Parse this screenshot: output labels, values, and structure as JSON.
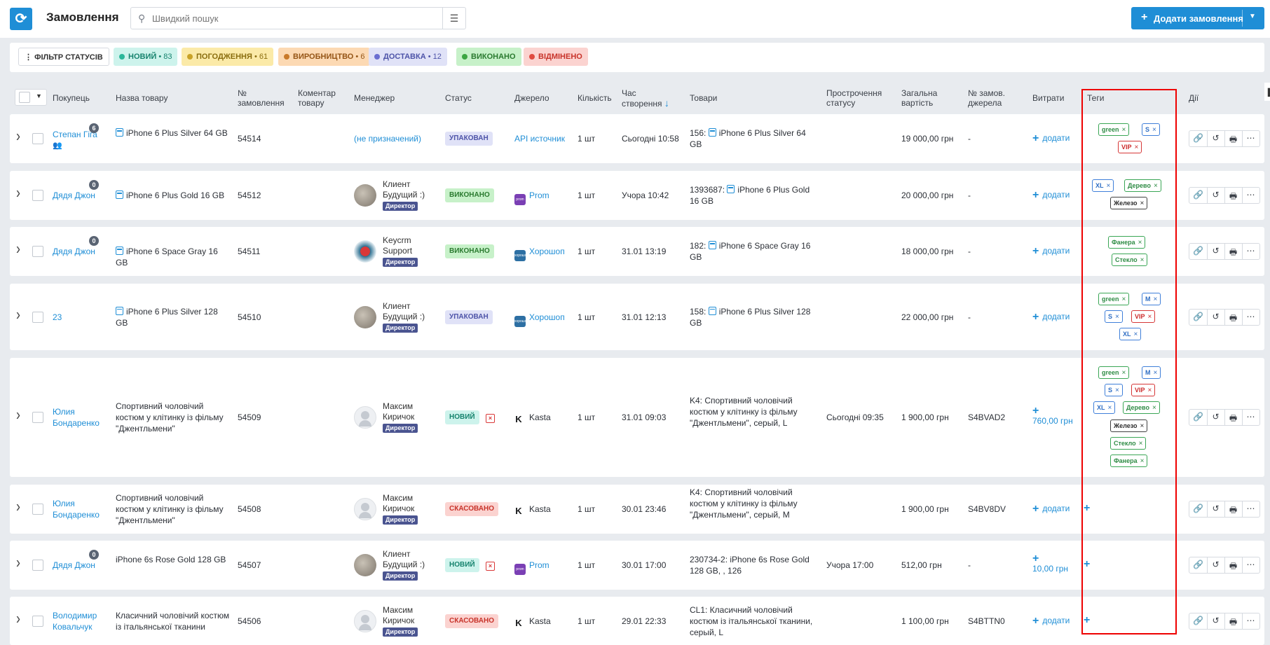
{
  "header": {
    "title": "Замовлення",
    "search_placeholder": "Швидкий пошук",
    "add_order_label": "Додати замовлення"
  },
  "status_filters": {
    "filter_label": "ФІЛЬТР СТАТУСІВ",
    "chips": [
      {
        "label": "НОВИЙ",
        "count": "• 83",
        "color": "#2bb79a"
      },
      {
        "label": "ПОГОДЖЕННЯ",
        "count": "• 61",
        "color": "#c9a227"
      },
      {
        "label": "ВИРОБНИЦТВО",
        "count": "• 6",
        "color": "#c97a2b"
      },
      {
        "label": "ДОСТАВКА",
        "count": "• 12",
        "color": "#6b6fd1"
      },
      {
        "label": "ВИКОНАНО",
        "count": "",
        "color": "#3ca642"
      },
      {
        "label": "ВІДМІНЕНО",
        "count": "",
        "color": "#e04b40"
      }
    ]
  },
  "columns": {
    "buyer": "Покупець",
    "product_name": "Назва товару",
    "order_no_1": "№",
    "order_no_2": "замовлення",
    "comment_1": "Коментар",
    "comment_2": "товару",
    "manager": "Менеджер",
    "status": "Статус",
    "source": "Джерело",
    "quantity": "Кількість",
    "created_1": "Час",
    "created_2": "створення",
    "goods": "Товари",
    "overdue_1": "Прострочення",
    "overdue_2": "статусу",
    "total_1": "Загальна",
    "total_2": "вартість",
    "src_no_1": "№ замов.",
    "src_no_2": "джерела",
    "expenses": "Витрати",
    "tags": "Теги",
    "actions": "Дії"
  },
  "add_label": "додати",
  "orders": [
    {
      "buyer": "Степан Гіга",
      "buyer_badge": "6",
      "product": "iPhone 6 Plus Silver 64 GB",
      "order_no": "54514",
      "manager_name": "(не призначений)",
      "manager_role": "",
      "status": "УПАКОВАН",
      "source": "API источник",
      "qty": "1 шт",
      "created": "Сьогодні 10:58",
      "goods_prefix": "156:",
      "goods": "iPhone 6 Plus Silver 64 GB",
      "overdue": "",
      "total": "19 000,00 грн",
      "src_no": "-",
      "expense": "",
      "tags": [
        [
          "green",
          "green"
        ],
        [
          "S",
          "blue"
        ],
        [
          "VIP",
          "red"
        ]
      ]
    },
    {
      "buyer": "Дядя Джон",
      "buyer_badge": "0",
      "product": "iPhone 6 Plus Gold 16 GB",
      "order_no": "54512",
      "manager_name": "Клиент Будущий :)",
      "manager_role": "Директор",
      "status": "ВИКОНАНО",
      "source": "Prom",
      "qty": "1 шт",
      "created": "Учора 10:42",
      "goods_prefix": "1393687:",
      "goods": "iPhone 6 Plus Gold 16 GB",
      "overdue": "",
      "total": "20 000,00 грн",
      "src_no": "-",
      "expense": "",
      "tags": [
        [
          "XL",
          "blue"
        ],
        [
          "Дерево",
          "green"
        ],
        [
          "Железо",
          "dark"
        ]
      ]
    },
    {
      "buyer": "Дядя Джон",
      "buyer_badge": "0",
      "product": "iPhone 6 Space Gray 16 GB",
      "order_no": "54511",
      "manager_name": "Keycrm Support",
      "manager_role": "Директор",
      "status": "ВИКОНАНО",
      "source": "Хорошоп",
      "qty": "1 шт",
      "created": "31.01 13:19",
      "goods_prefix": "182:",
      "goods": "iPhone 6 Space Gray 16 GB",
      "overdue": "",
      "total": "18 000,00 грн",
      "src_no": "-",
      "expense": "",
      "tags": [
        [
          "Фанера",
          "green"
        ],
        [
          "Стекло",
          "green"
        ]
      ]
    },
    {
      "buyer": "23",
      "buyer_badge": "",
      "product": "iPhone 6 Plus Silver 128 GB",
      "order_no": "54510",
      "manager_name": "Клиент Будущий :)",
      "manager_role": "Директор",
      "status": "УПАКОВАН",
      "source": "Хорошоп",
      "qty": "1 шт",
      "created": "31.01 12:13",
      "goods_prefix": "158:",
      "goods": "iPhone 6 Plus Silver 128 GB",
      "overdue": "",
      "total": "22 000,00 грн",
      "src_no": "-",
      "expense": "",
      "tags": [
        [
          "green",
          "green"
        ],
        [
          "M",
          "blue"
        ],
        [
          "S",
          "blue"
        ],
        [
          "VIP",
          "red"
        ],
        [
          "XL",
          "blue"
        ]
      ]
    },
    {
      "buyer": "Юлия Бондаренко",
      "buyer_badge": "",
      "product": "Спортивний чоловічий костюм у клітинку із фільму \"Джентльмени\"",
      "order_no": "54509",
      "manager_name": "Максим Киричок",
      "manager_role": "Директор",
      "status": "НОВИЙ",
      "source": "Kasta",
      "qty": "1 шт",
      "created": "31.01 09:03",
      "goods_prefix": "",
      "goods": "K4: Спортивний чоловічий костюм у клітинку із фільму \"Джентльмени\", серый, L",
      "overdue": "Сьогодні 09:35",
      "total": "1 900,00 грн",
      "src_no": "S4BVAD2",
      "expense": "760,00 грн",
      "tags": [
        [
          "green",
          "green"
        ],
        [
          "M",
          "blue"
        ],
        [
          "S",
          "blue"
        ],
        [
          "VIP",
          "red"
        ],
        [
          "XL",
          "blue"
        ],
        [
          "Дерево",
          "green"
        ],
        [
          "Железо",
          "dark"
        ],
        [
          "Стекло",
          "green"
        ],
        [
          "Фанера",
          "green"
        ]
      ]
    },
    {
      "buyer": "Юлия Бондаренко",
      "buyer_badge": "",
      "product": "Спортивний чоловічий костюм у клітинку із фільму \"Джентльмени\"",
      "order_no": "54508",
      "manager_name": "Максим Киричок",
      "manager_role": "Директор",
      "status": "СКАСОВАНО",
      "source": "Kasta",
      "qty": "1 шт",
      "created": "30.01 23:46",
      "goods_prefix": "",
      "goods": "K4: Спортивний чоловічий костюм у клітинку із фільму \"Джентльмени\", серый, M",
      "overdue": "",
      "total": "1 900,00 грн",
      "src_no": "S4BV8DV",
      "expense": "",
      "tags": []
    },
    {
      "buyer": "Дядя Джон",
      "buyer_badge": "0",
      "product": "iPhone 6s Rose Gold 128 GB",
      "order_no": "54507",
      "manager_name": "Клиент Будущий :)",
      "manager_role": "Директор",
      "status": "НОВИЙ",
      "source": "Prom",
      "qty": "1 шт",
      "created": "30.01 17:00",
      "goods_prefix": "",
      "goods": "230734-2: iPhone 6s Rose Gold 128 GB, , 126",
      "overdue": "Учора 17:00",
      "total": "512,00 грн",
      "src_no": "-",
      "expense": "10,00 грн",
      "tags": []
    },
    {
      "buyer": "Володимир Ковальчук",
      "buyer_badge": "",
      "product": "Класичний чоловічий костюм із італьянської тканини",
      "order_no": "54506",
      "manager_name": "Максим Киричок",
      "manager_role": "Директор",
      "status": "СКАСОВАНО",
      "source": "Kasta",
      "qty": "1 шт",
      "created": "29.01 22:33",
      "goods_prefix": "",
      "goods": "CL1: Класичний чоловічий костюм із італьянської тканини, серый, L",
      "overdue": "",
      "total": "1 100,00 грн",
      "src_no": "S4BTTN0",
      "expense": "",
      "tags": []
    }
  ]
}
